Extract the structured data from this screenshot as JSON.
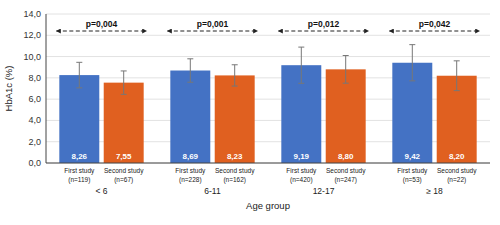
{
  "chart_data": {
    "type": "bar",
    "categories": [
      "< 6",
      "6-11",
      "12-17",
      "≥ 18"
    ],
    "series": [
      {
        "name": "First study",
        "color": "#4472C4",
        "values": [
          8.26,
          8.69,
          9.19,
          9.42
        ],
        "value_labels": [
          "8,26",
          "8,69",
          "9,19",
          "9,42"
        ],
        "errors": [
          1.2,
          1.1,
          1.7,
          1.7
        ],
        "n_labels": [
          "(n=119)",
          "(n=228)",
          "(n=420)",
          "(n=53)"
        ]
      },
      {
        "name": "Second study",
        "color": "#E06020",
        "values": [
          7.55,
          8.23,
          8.8,
          8.2
        ],
        "value_labels": [
          "7,55",
          "8,23",
          "8,80",
          "8,20"
        ],
        "errors": [
          1.1,
          1.0,
          1.3,
          1.4
        ],
        "n_labels": [
          "(n=67)",
          "(n=162)",
          "(n=247)",
          "(n=22)"
        ]
      }
    ],
    "annotations": [
      "p=0,004",
      "p=0,001",
      "p=0,012",
      "p=0,042"
    ],
    "xlabel": "Age group",
    "ylabel": "HbA1c (%)",
    "ylim": [
      0,
      14.0
    ],
    "yticks": [
      {
        "value": 0.0,
        "label": "0,0"
      },
      {
        "value": 2.0,
        "label": "2,0"
      },
      {
        "value": 4.0,
        "label": "4,0"
      },
      {
        "value": 6.0,
        "label": "6,0"
      },
      {
        "value": 8.0,
        "label": "8,0"
      },
      {
        "value": 10.0,
        "label": "10,0"
      },
      {
        "value": 12.0,
        "label": "12,0"
      },
      {
        "value": 14.0,
        "label": "14,0"
      }
    ],
    "grid": true,
    "data_labels": true
  }
}
